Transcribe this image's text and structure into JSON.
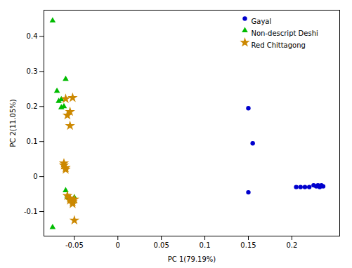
{
  "chart_data": {
    "type": "scatter",
    "xlabel": "PC 1(79.19%)",
    "ylabel": "PC 2(11.05%)",
    "series": [
      {
        "name": "Gayal",
        "color": "#0000CD",
        "marker": "circle",
        "x": [
          0.15,
          0.155,
          0.15,
          0.205,
          0.21,
          0.215,
          0.22,
          0.225,
          0.228,
          0.23,
          0.232,
          0.234,
          0.236
        ],
        "values": [
          -0.045,
          0.095,
          0.195,
          -0.03,
          -0.03,
          -0.03,
          -0.03,
          -0.025,
          -0.028,
          -0.025,
          -0.03,
          -0.025,
          -0.028
        ]
      },
      {
        "name": "Non-descript Deshi",
        "color": "#00BB00",
        "marker": "triangle",
        "x": [
          -0.075,
          -0.07,
          -0.068,
          -0.065,
          -0.065,
          -0.062,
          -0.06,
          -0.06,
          -0.058,
          -0.058,
          -0.055,
          -0.052,
          -0.05,
          -0.075
        ],
        "values": [
          0.445,
          0.244,
          0.215,
          0.22,
          0.197,
          0.2,
          0.278,
          -0.04,
          -0.055,
          -0.06,
          -0.065,
          -0.07,
          -0.06,
          -0.145
        ]
      },
      {
        "name": "Red Chittagong",
        "color": "#CC8800",
        "marker": "star",
        "x": [
          -0.06,
          -0.058,
          -0.055,
          -0.055,
          -0.052,
          -0.062,
          -0.062,
          -0.06,
          -0.06,
          -0.058,
          -0.055,
          -0.055,
          -0.052,
          -0.052,
          -0.05,
          -0.05
        ],
        "values": [
          0.222,
          0.175,
          0.185,
          0.145,
          0.225,
          0.038,
          0.032,
          0.025,
          0.02,
          -0.055,
          -0.062,
          -0.068,
          -0.072,
          -0.078,
          -0.065,
          -0.125
        ]
      }
    ],
    "xlim": [
      -0.085,
      0.255
    ],
    "ylim": [
      -0.17,
      0.475
    ],
    "xticks": [
      -0.05,
      0.0,
      0.05,
      0.1,
      0.15,
      0.2
    ],
    "yticks": [
      -0.1,
      0.0,
      0.1,
      0.2,
      0.3,
      0.4
    ],
    "grid": false,
    "legend": "upper right"
  }
}
